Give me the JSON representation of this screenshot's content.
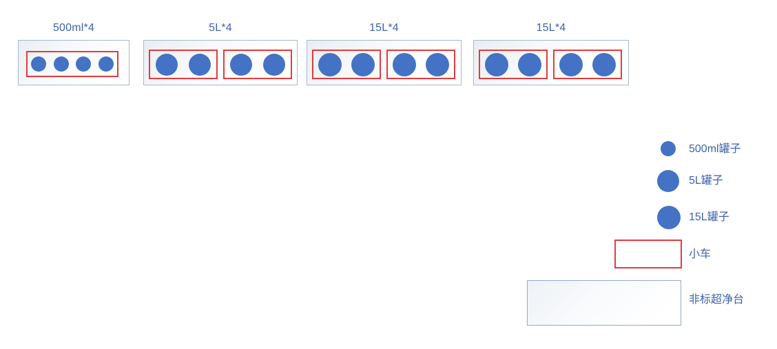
{
  "diagram": {
    "colors": {
      "bottle_blue": "#4472c4",
      "label_blue": "#3e63ae",
      "cart_red": "#e23b3b",
      "station_border": "#a6b8cf",
      "bench_border": "#93aac9"
    },
    "stations": [
      {
        "label": "500ml*4",
        "bottle_type": "500ml",
        "carts": [
          4
        ]
      },
      {
        "label": "5L*4",
        "bottle_type": "5L",
        "carts": [
          2,
          2
        ]
      },
      {
        "label": "15L*4",
        "bottle_type": "15L",
        "carts": [
          2,
          2
        ]
      },
      {
        "label": "15L*4",
        "bottle_type": "15L",
        "carts": [
          2,
          2
        ]
      }
    ],
    "legend": {
      "bottle_small_label": "500ml罐子",
      "bottle_medium_label": "5L罐子",
      "bottle_large_label": "15L罐子",
      "cart_label": "小车",
      "bench_label": "非标超净台"
    }
  }
}
